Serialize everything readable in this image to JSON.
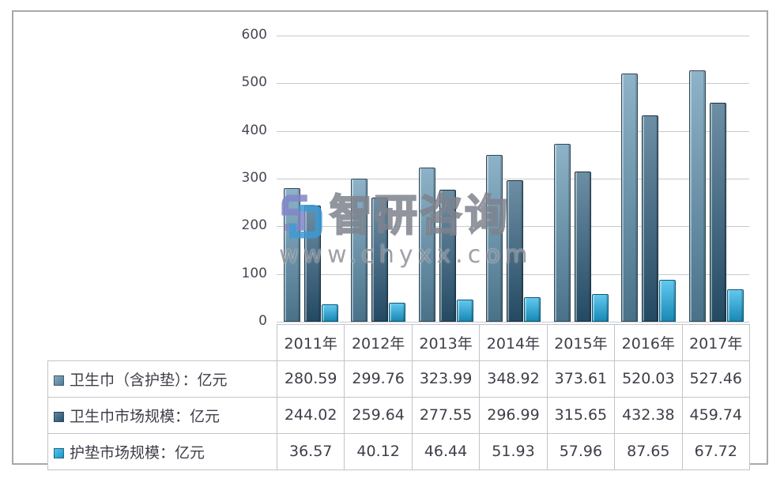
{
  "watermark": {
    "brand": "智研咨询",
    "url": "www.chyxx.com"
  },
  "chart_data": {
    "type": "bar",
    "categories": [
      "2011年",
      "2012年",
      "2013年",
      "2014年",
      "2015年",
      "2016年",
      "2017年"
    ],
    "series": [
      {
        "name": "卫生巾（含护垫）：亿元",
        "color": "#5e92b0",
        "values": [
          280.59,
          299.76,
          323.99,
          348.92,
          373.61,
          520.03,
          527.46
        ]
      },
      {
        "name": "卫生巾市场规模：亿元",
        "color": "#2e5f7f",
        "values": [
          244.02,
          259.64,
          277.55,
          296.99,
          315.65,
          432.38,
          459.74
        ]
      },
      {
        "name": "护垫市场规模：亿元",
        "color": "#1fb0e8",
        "values": [
          36.57,
          40.12,
          46.44,
          51.93,
          57.96,
          87.65,
          67.72
        ]
      }
    ],
    "ylim": [
      0,
      600
    ],
    "yticks": [
      0,
      100,
      200,
      300,
      400,
      500,
      600
    ],
    "grid": true,
    "value_decimals": 2,
    "legend_position": "table-left",
    "xlabel": "",
    "ylabel": ""
  }
}
